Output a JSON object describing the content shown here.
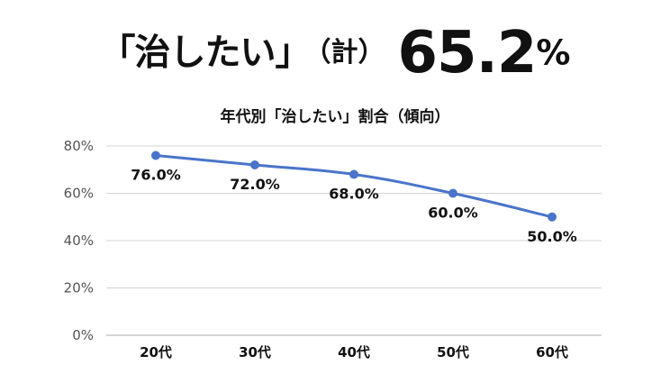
{
  "headline": {
    "label": "「治したい」",
    "sub": "（計）",
    "value": "65.2",
    "unit": "%"
  },
  "colors": {
    "series": "#4a74c9",
    "grid": "#d4d4d4",
    "axis": "#bdbdbd"
  },
  "chart_data": {
    "type": "line",
    "title": "年代別「治したい」割合（傾向）",
    "categories": [
      "20代",
      "30代",
      "40代",
      "50代",
      "60代"
    ],
    "series": [
      {
        "values": [
          76.0,
          72.0,
          68.0,
          60.0,
          50.0
        ],
        "labels": [
          "76.0%",
          "72.0%",
          "68.0%",
          "60.0%",
          "50.0%"
        ]
      }
    ],
    "yticks": [
      "0%",
      "20%",
      "40%",
      "60%",
      "80%"
    ],
    "ylim": [
      0,
      80
    ],
    "grid": true,
    "legend": "none"
  }
}
